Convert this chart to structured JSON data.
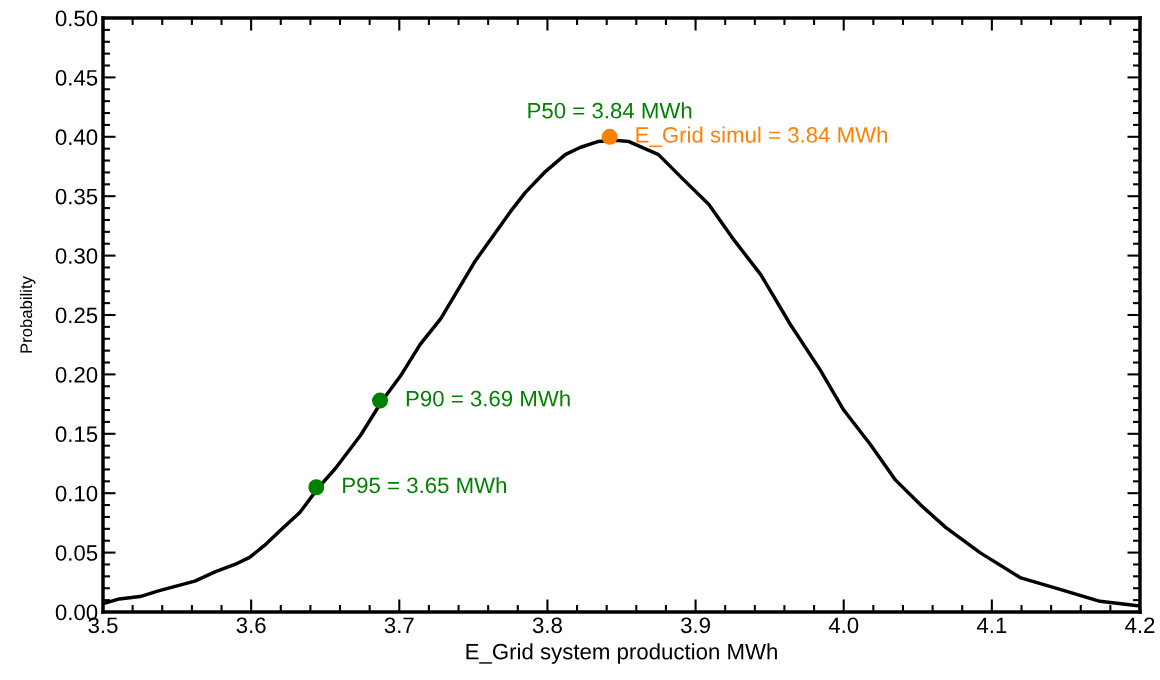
{
  "chart_data": {
    "type": "line",
    "xlabel": "E_Grid system production MWh",
    "ylabel": "Probability",
    "xlim": [
      3.5,
      4.2
    ],
    "xticks": [
      {
        "value": 3.5,
        "label": "3.5"
      },
      {
        "value": 3.6,
        "label": "3.6"
      },
      {
        "value": 3.7,
        "label": "3.7"
      },
      {
        "value": 3.8,
        "label": "3.8"
      },
      {
        "value": 3.9,
        "label": "3.9"
      },
      {
        "value": 4.0,
        "label": "4.0"
      },
      {
        "value": 4.1,
        "label": "4.1"
      },
      {
        "value": 4.2,
        "label": "4.2"
      }
    ],
    "ylim": [
      0,
      0.5
    ],
    "yticks": [
      {
        "value": 0,
        "label": "0.00"
      },
      {
        "value": 0.05,
        "label": "0.05"
      },
      {
        "value": 0.1,
        "label": "0.10"
      },
      {
        "value": 0.15,
        "label": "0.15"
      },
      {
        "value": 0.2,
        "label": "0.20"
      },
      {
        "value": 0.25,
        "label": "0.25"
      },
      {
        "value": 0.3,
        "label": "0.30"
      },
      {
        "value": 0.35,
        "label": "0.35"
      },
      {
        "value": 0.4,
        "label": "0.40"
      },
      {
        "value": 0.45,
        "label": "0.45"
      },
      {
        "value": 0.5,
        "label": "0.50"
      }
    ],
    "grid": false,
    "legend": false,
    "series": [
      {
        "color": "#000000",
        "marker": "none",
        "line_style": "solid",
        "x": [
          3.5,
          3.511,
          3.525,
          3.538,
          3.562,
          3.576,
          3.589,
          3.599,
          3.609,
          3.62,
          3.633,
          3.645,
          3.657,
          3.674,
          3.688,
          3.701,
          3.714,
          3.728,
          3.751,
          3.775,
          3.785,
          3.798,
          3.812,
          3.822,
          3.834,
          3.846,
          3.855,
          3.875,
          3.891,
          3.909,
          3.926,
          3.944,
          3.964,
          3.984,
          4.0,
          4.018,
          4.035,
          4.052,
          4.069,
          4.092,
          4.119,
          4.146,
          4.173,
          4.2
        ],
        "values": [
          0.007,
          0.011,
          0.013,
          0.018,
          0.026,
          0.034,
          0.04,
          0.046,
          0.056,
          0.069,
          0.084,
          0.104,
          0.121,
          0.149,
          0.177,
          0.199,
          0.225,
          0.247,
          0.295,
          0.337,
          0.353,
          0.37,
          0.385,
          0.391,
          0.396,
          0.397,
          0.396,
          0.385,
          0.365,
          0.343,
          0.313,
          0.284,
          0.242,
          0.204,
          0.17,
          0.141,
          0.111,
          0.09,
          0.071,
          0.05,
          0.029,
          0.019,
          0.009,
          0.005
        ]
      },
      {
        "type": "scatter",
        "color": "#008000",
        "marker": "circle",
        "x": [
          3.644,
          3.687
        ],
        "values": [
          0.105,
          0.178
        ]
      },
      {
        "type": "scatter",
        "name": "E_Grid simul = 3.84 MWh",
        "color": "#ff8000",
        "marker": "circle",
        "x": [
          3.842
        ],
        "values": [
          0.4
        ]
      }
    ],
    "annotations": [
      {
        "text": "P95 = 3.65 MWh",
        "x": 3.644,
        "y": 0.105
      },
      {
        "text": "P90 = 3.69 MWh",
        "x": 3.687,
        "y": 0.178
      },
      {
        "text": "P50 = 3.84 MWh",
        "x": 3.842,
        "y": 0.4
      }
    ]
  }
}
